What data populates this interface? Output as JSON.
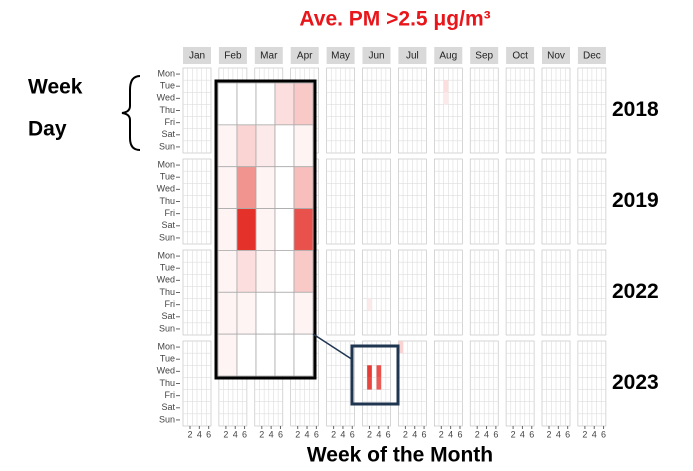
{
  "chart_data": {
    "type": "calendar-heatmap",
    "title": "Ave. PM >2.5 μg/m³",
    "y_label": [
      "Week",
      "Day"
    ],
    "x_label": "Week of the Month",
    "months": [
      "Jan",
      "Feb",
      "Mar",
      "Apr",
      "May",
      "Jun",
      "Jul",
      "Aug",
      "Sep",
      "Oct",
      "Nov",
      "Dec"
    ],
    "years": [
      "2018",
      "2019",
      "2022",
      "2023"
    ],
    "weekdays": [
      "Mon",
      "Tue",
      "Wed",
      "Thu",
      "Fri",
      "Sat",
      "Sun"
    ],
    "xticks": [
      2,
      4,
      6
    ],
    "color": "#e3261f",
    "cells": [
      {
        "year": "2018",
        "month": "Aug",
        "week": 3,
        "day": "Tue",
        "value": 0.15
      },
      {
        "year": "2018",
        "month": "Aug",
        "week": 3,
        "day": "Wed",
        "value": 0.1
      },
      {
        "year": "2022",
        "month": "Jun",
        "week": 2,
        "day": "Fri",
        "value": 0.1
      },
      {
        "year": "2023",
        "month": "Jul",
        "week": 1,
        "day": "Mon",
        "value": 0.2
      },
      {
        "year": "2023",
        "month": "Jun",
        "week": 2,
        "day": "Wed",
        "value": 0.9
      },
      {
        "year": "2023",
        "month": "Jun",
        "week": 2,
        "day": "Thu",
        "value": 0.85
      },
      {
        "year": "2023",
        "month": "Jun",
        "week": 4,
        "day": "Wed",
        "value": 0.8
      },
      {
        "year": "2023",
        "month": "Jun",
        "week": 4,
        "day": "Thu",
        "value": 0.75
      }
    ],
    "inset": {
      "values": [
        [
          0,
          0,
          0,
          0.15,
          0.25
        ],
        [
          0.05,
          0.2,
          0.1,
          0,
          0.05
        ],
        [
          0.05,
          0.5,
          0.05,
          0,
          0.3
        ],
        [
          0.05,
          0.95,
          0.05,
          0,
          0.8
        ],
        [
          0.05,
          0.15,
          0.05,
          0,
          0.25
        ],
        [
          0.05,
          0.05,
          0,
          0,
          0.05
        ],
        [
          0.05,
          0,
          0,
          0,
          0
        ]
      ]
    }
  }
}
